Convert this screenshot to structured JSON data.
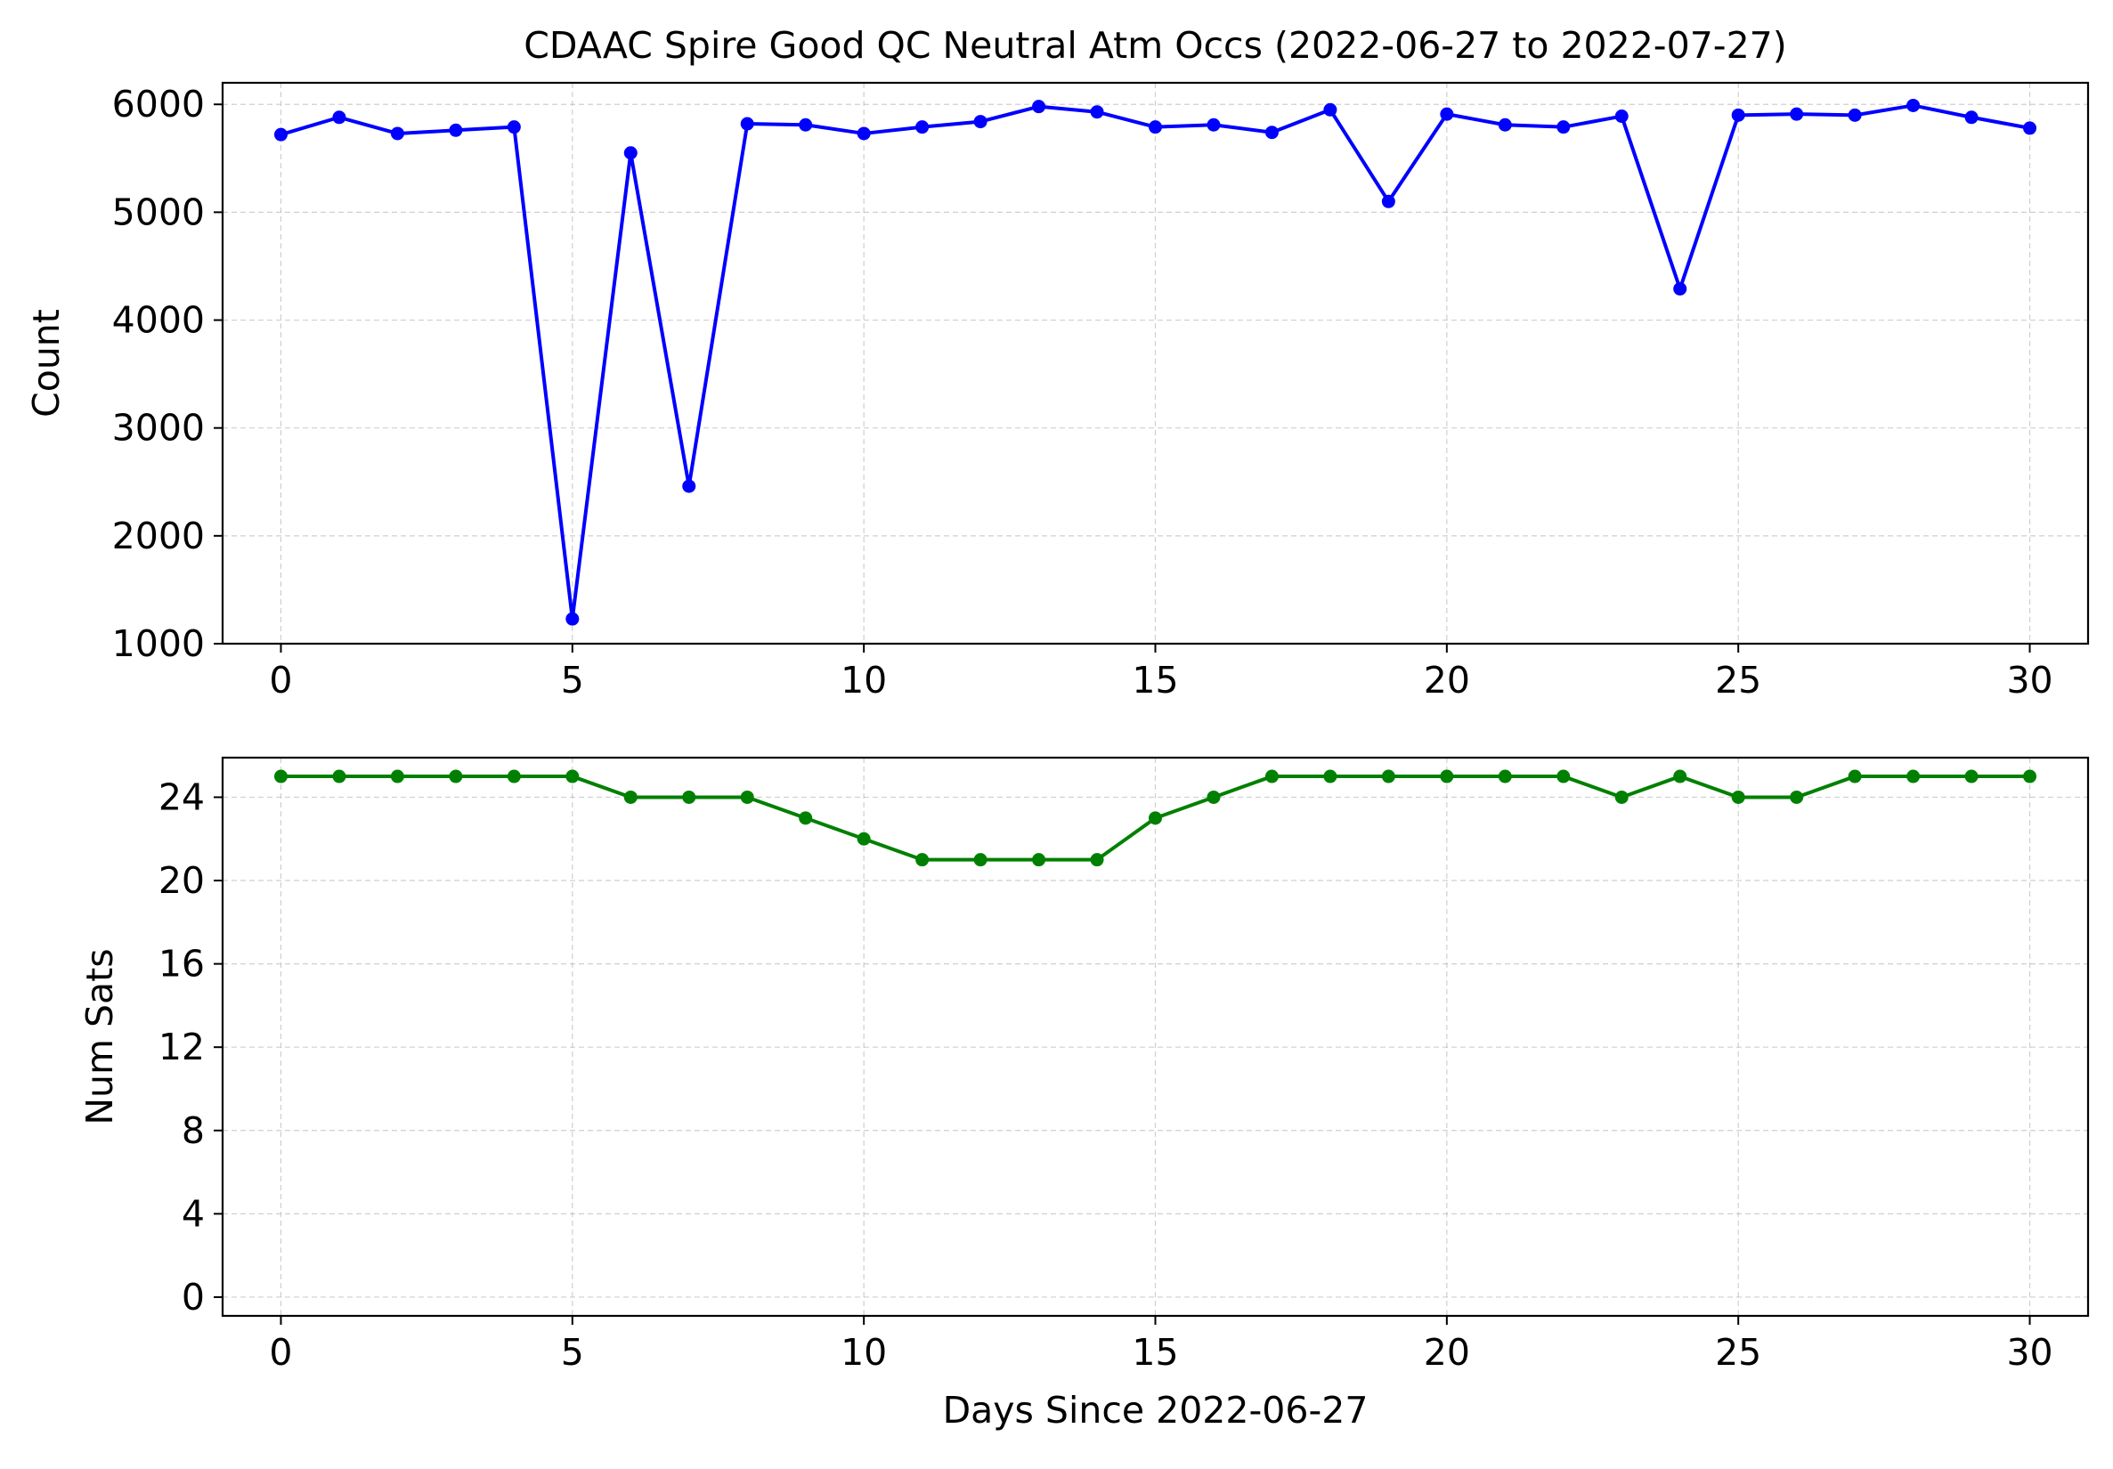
{
  "chart_data": [
    {
      "type": "line",
      "title": "CDAAC Spire Good QC Neutral Atm Occs (2022-06-27 to 2022-07-27)",
      "xlabel": "",
      "ylabel": "Count",
      "xlim": [
        -1,
        31
      ],
      "ylim": [
        1000,
        6200
      ],
      "xticks": [
        0,
        5,
        10,
        15,
        20,
        25,
        30
      ],
      "yticks": [
        1000,
        2000,
        3000,
        4000,
        5000,
        6000
      ],
      "grid": true,
      "color": "#0000ff",
      "series": [
        {
          "x": [
            0,
            1,
            2,
            3,
            4,
            5,
            6,
            7,
            8,
            9,
            10,
            11,
            12,
            13,
            14,
            15,
            16,
            17,
            18,
            19,
            20,
            21,
            22,
            23,
            24,
            25,
            26,
            27,
            28,
            29,
            30
          ],
          "values": [
            5720,
            5880,
            5730,
            5760,
            5790,
            1230,
            5550,
            2460,
            5820,
            5810,
            5730,
            5790,
            5840,
            5980,
            5930,
            5790,
            5810,
            5740,
            5950,
            5100,
            5910,
            5810,
            5790,
            5890,
            4290,
            5900,
            5910,
            5900,
            5990,
            5880,
            5780
          ]
        }
      ]
    },
    {
      "type": "line",
      "title": "",
      "xlabel": "Days Since 2022-06-27",
      "ylabel": "Num Sats",
      "xlim": [
        -1,
        31
      ],
      "ylim": [
        -0.9,
        25.9
      ],
      "xticks": [
        0,
        5,
        10,
        15,
        20,
        25,
        30
      ],
      "yticks": [
        0,
        4,
        8,
        12,
        16,
        20,
        24
      ],
      "grid": true,
      "color": "#008000",
      "series": [
        {
          "x": [
            0,
            1,
            2,
            3,
            4,
            5,
            6,
            7,
            8,
            9,
            10,
            11,
            12,
            13,
            14,
            15,
            16,
            17,
            18,
            19,
            20,
            21,
            22,
            23,
            24,
            25,
            26,
            27,
            28,
            29,
            30
          ],
          "values": [
            25,
            25,
            25,
            25,
            25,
            25,
            24,
            24,
            24,
            23,
            22,
            21,
            21,
            21,
            21,
            23,
            24,
            25,
            25,
            25,
            25,
            25,
            25,
            24,
            25,
            24,
            24,
            25,
            25,
            25,
            25
          ]
        }
      ]
    }
  ]
}
